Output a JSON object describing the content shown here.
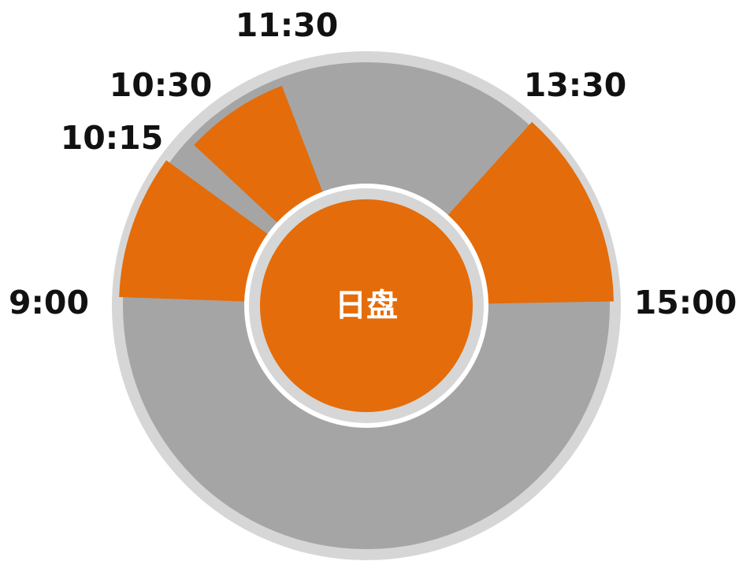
{
  "center_label": "日盘",
  "colors": {
    "outer_ring": "#d6d6d6",
    "idle_band": "#a5a5a5",
    "session": "#e46c0a",
    "separator": "#ffffff",
    "center_ring": "#d6d6d6",
    "center": "#e46c0a"
  },
  "sessions": [
    {
      "name": "morning-session-1",
      "start": "9:00",
      "end": "10:15"
    },
    {
      "name": "morning-session-2",
      "start": "10:30",
      "end": "11:30"
    },
    {
      "name": "afternoon-session",
      "start": "13:30",
      "end": "15:00"
    }
  ],
  "time_labels": [
    {
      "name": "time-label-0900",
      "text": "9:00"
    },
    {
      "name": "time-label-1015",
      "text": "10:15"
    },
    {
      "name": "time-label-1030",
      "text": "10:30"
    },
    {
      "name": "time-label-1130",
      "text": "11:30"
    },
    {
      "name": "time-label-1330",
      "text": "13:30"
    },
    {
      "name": "time-label-1500",
      "text": "15:00"
    }
  ]
}
